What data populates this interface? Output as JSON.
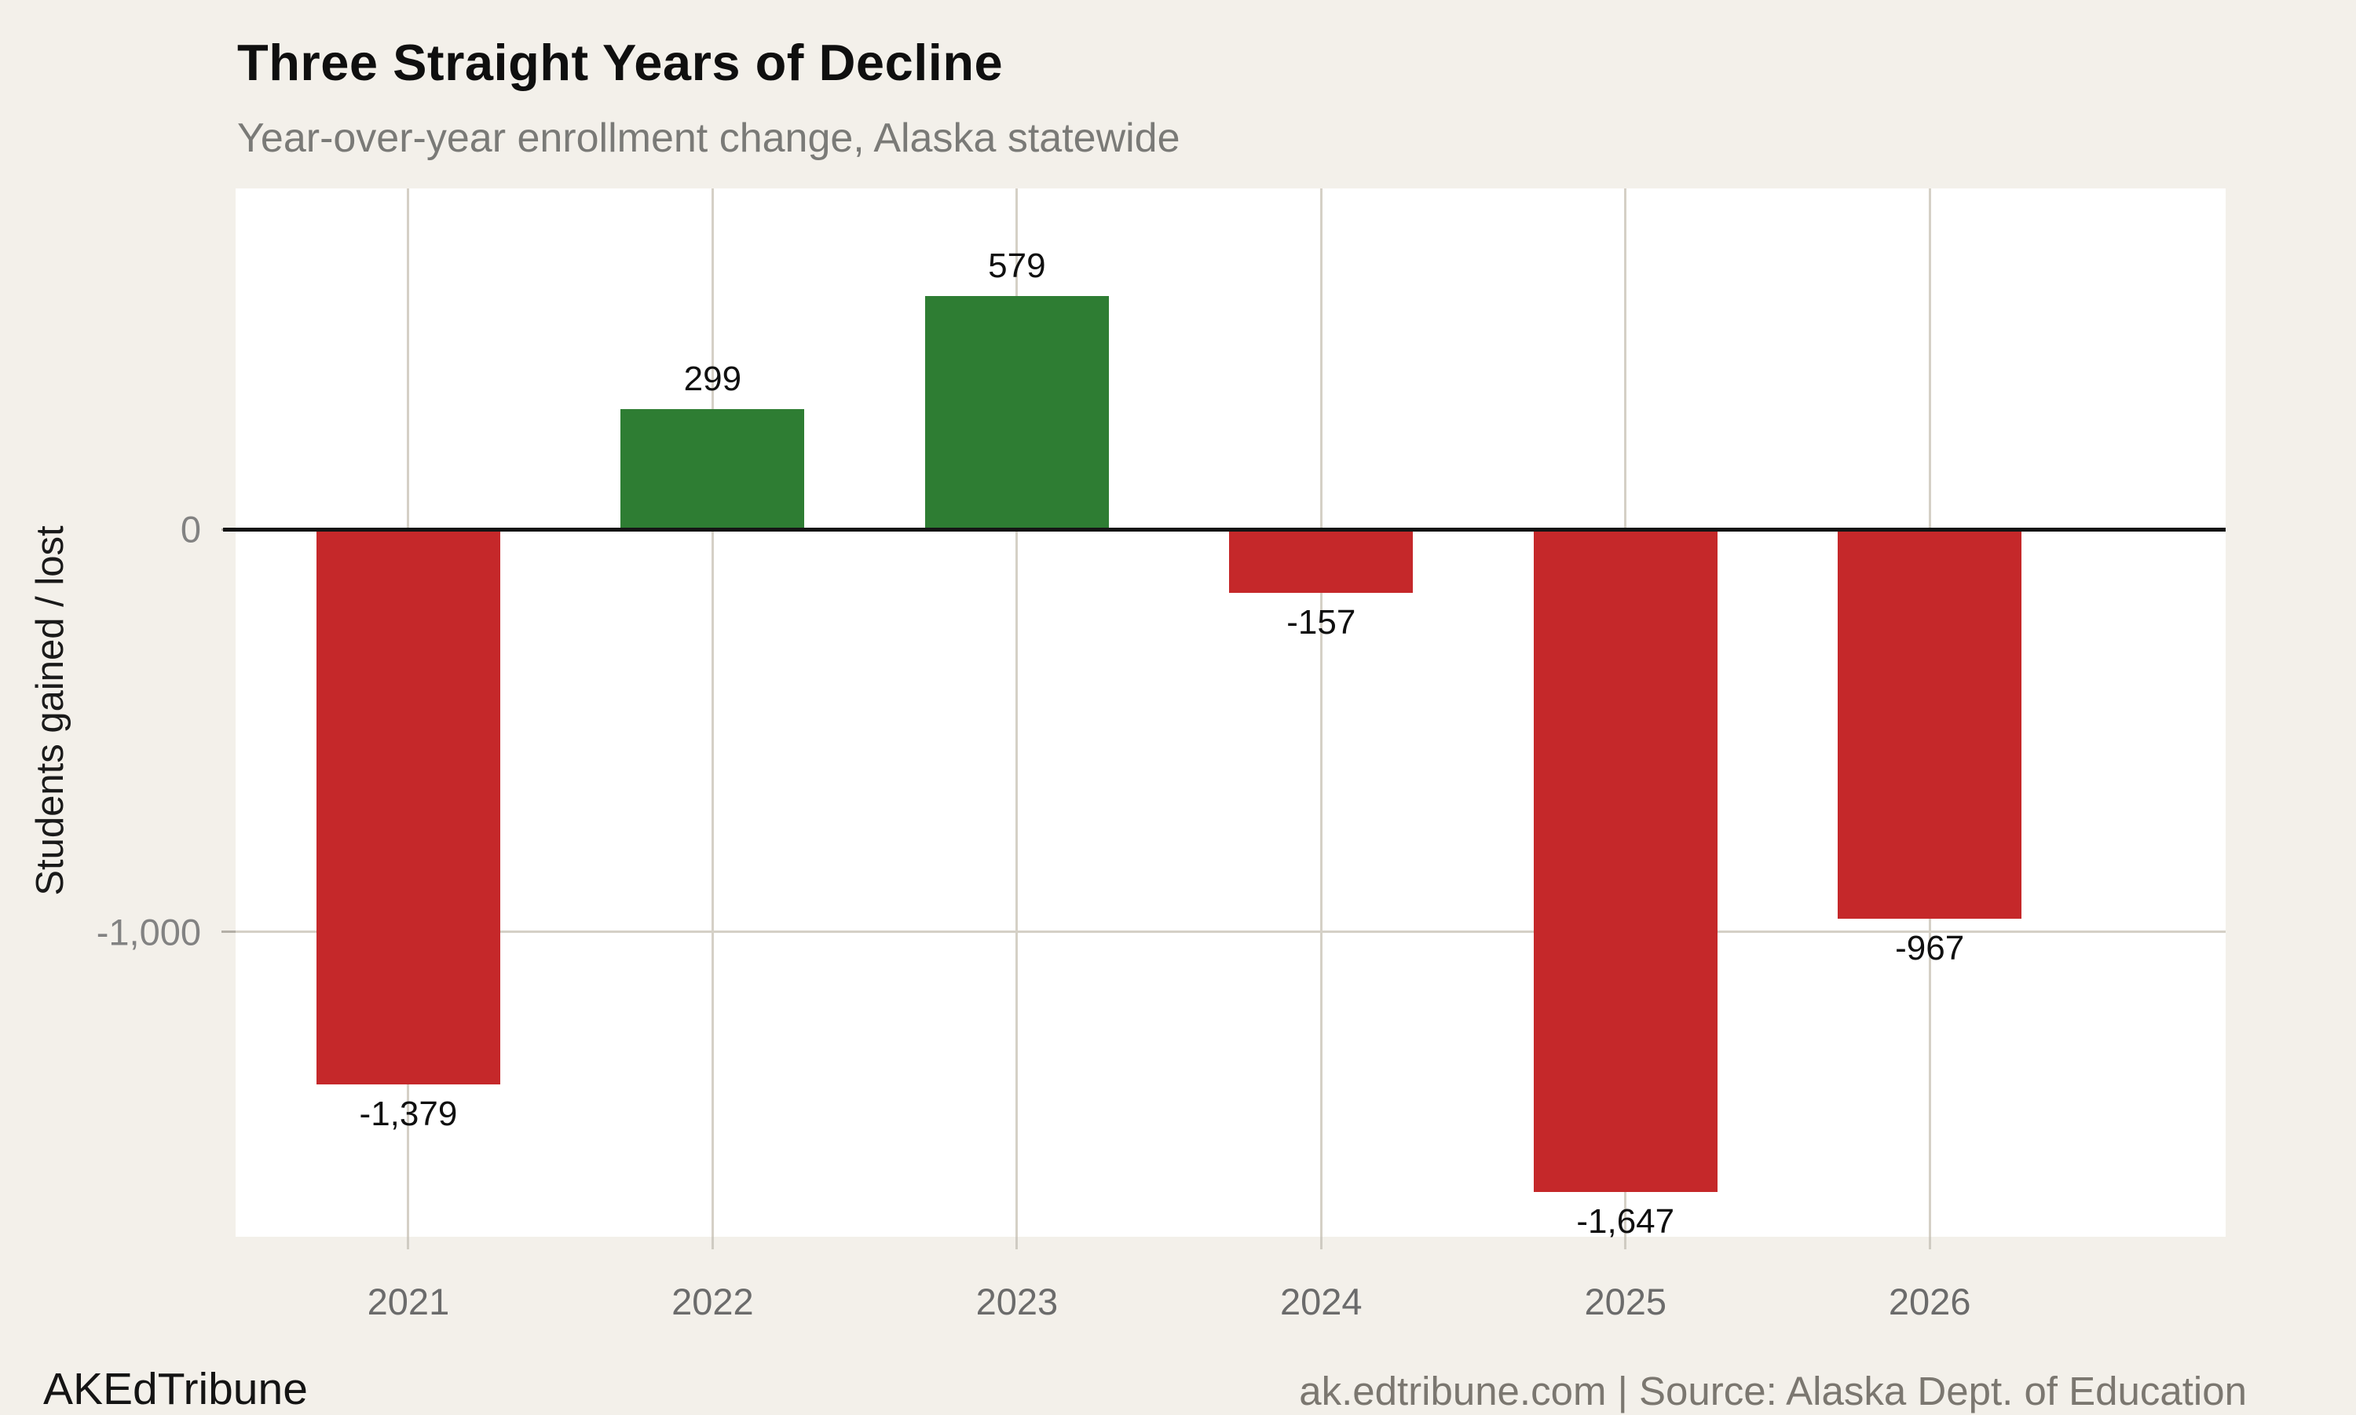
{
  "chart_data": {
    "type": "bar",
    "title": "Three Straight Years of Decline",
    "subtitle": "Year-over-year enrollment change, Alaska statewide",
    "ylabel": "Students gained / lost",
    "xlabel": "",
    "categories": [
      "2021",
      "2022",
      "2023",
      "2024",
      "2025",
      "2026"
    ],
    "values": [
      -1379,
      299,
      579,
      -157,
      -1647,
      -967
    ],
    "value_labels": [
      "-1,379",
      "299",
      "579",
      "-157",
      "-1,647",
      "-967"
    ],
    "yticks": [
      {
        "value": 0,
        "label": "0"
      },
      {
        "value": -1000,
        "label": "-1,000"
      }
    ],
    "ylim": [
      -1758,
      847
    ],
    "grid": "on",
    "legend": "none",
    "colors": {
      "gain": "#2e7d33",
      "loss": "#c5282a"
    }
  },
  "footer": {
    "brand": "AKEdTribune",
    "source": "ak.edtribune.com | Source: Alaska Dept. of Education"
  }
}
